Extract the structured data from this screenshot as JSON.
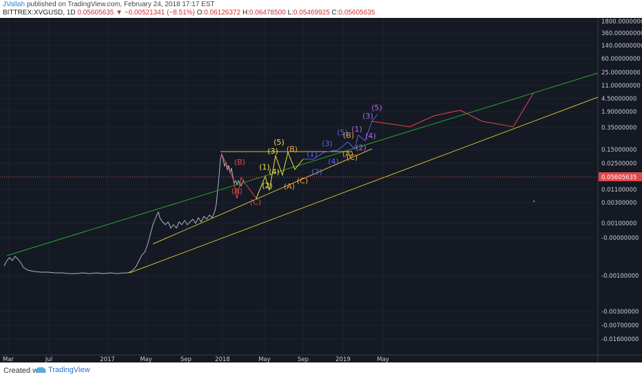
{
  "header": {
    "author": "JVallah",
    "published_text": " published on TradingView.com, February 24, 2018 17:17 EST",
    "symbol": "BITTREX:XVGUSD, 1D",
    "last": "0.05605635",
    "down_arrow": "▼",
    "change": "−0.00521341 (−8.51%)",
    "ohlc": [
      {
        "label": "O:",
        "value": "0.06126372"
      },
      {
        "label": "H:",
        "value": "0.06478500"
      },
      {
        "label": "L:",
        "value": "0.05469925"
      },
      {
        "label": "C:",
        "value": "0.05605635"
      }
    ]
  },
  "footer": {
    "created_with": "Created with",
    "brand": "TradingView"
  },
  "colors": {
    "background": "#151924",
    "price": "#b2b5be",
    "green_line": "#26a92a",
    "yellow_line": "#d4c436",
    "red": "#e84848",
    "yellow": "#f2e24a",
    "orange": "#f0a340",
    "blue": "#5866f0",
    "purple": "#b466f0",
    "last_price_bg": "#e04848"
  },
  "chart_data": {
    "type": "line",
    "scale": "log",
    "price_label": "0.05605635",
    "y_ticks": [
      "1800.00000000",
      "360.00000000",
      "140.00000000",
      "60.00000000",
      "25.00000000",
      "11.00000000",
      "4.50000000",
      "1.90000000",
      "0.35000000",
      "0.15000000",
      "0.02500000",
      "0.01100000",
      "0.00300000",
      "0.00100000",
      "-0.00000000",
      "-0.00100000",
      "-0.00300000",
      "-0.00700000",
      "-0.01600000"
    ],
    "x_ticks": [
      "Mar",
      "Jul",
      "2017",
      "May",
      "Sep",
      "2018",
      "May",
      "Sep",
      "2019",
      "May"
    ],
    "wave_labels": [
      {
        "text": "(B)",
        "color": "red"
      },
      {
        "text": "(A)",
        "color": "red"
      },
      {
        "text": "(C)",
        "color": "red"
      },
      {
        "text": "(1)",
        "color": "yellow"
      },
      {
        "text": "(2)",
        "color": "yellow"
      },
      {
        "text": "(3)",
        "color": "yellow"
      },
      {
        "text": "(4)",
        "color": "yellow"
      },
      {
        "text": "(5)",
        "color": "yellow"
      },
      {
        "text": "(A)",
        "color": "orange"
      },
      {
        "text": "(B)",
        "color": "orange"
      },
      {
        "text": "(C)",
        "color": "orange"
      },
      {
        "text": "(1)",
        "color": "blue"
      },
      {
        "text": "(2)",
        "color": "blue"
      },
      {
        "text": "(3)",
        "color": "blue"
      },
      {
        "text": "(4)",
        "color": "blue"
      },
      {
        "text": "(5)",
        "color": "blue"
      },
      {
        "text": "(A)",
        "color": "orange"
      },
      {
        "text": "(B)",
        "color": "orange"
      },
      {
        "text": "(C)",
        "color": "orange"
      },
      {
        "text": "(1)",
        "color": "purple"
      },
      {
        "text": "(2)",
        "color": "purple"
      },
      {
        "text": "(3)",
        "color": "purple"
      },
      {
        "text": "(4)",
        "color": "purple"
      },
      {
        "text": "(5)",
        "color": "purple"
      }
    ],
    "legend": "none",
    "grid": true
  }
}
